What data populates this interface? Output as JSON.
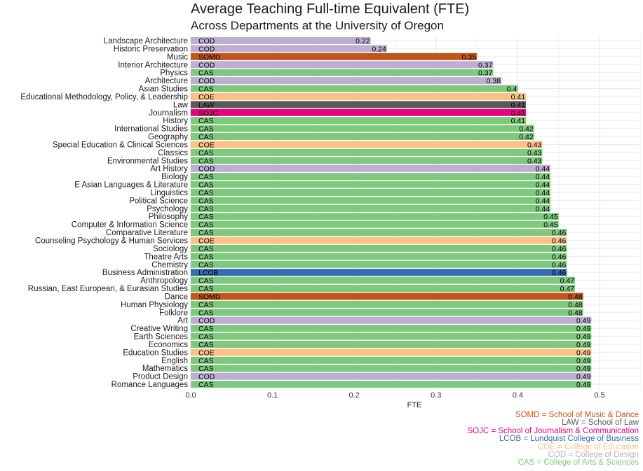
{
  "chart_data": {
    "type": "bar",
    "orientation": "horizontal",
    "title": "Average Teaching Full-time Equivalent (FTE)",
    "subtitle": "Across Departments at the University of Oregon",
    "xlabel": "FTE",
    "ylabel": "",
    "xlim": [
      0,
      0.55
    ],
    "xticks": [
      "0.0",
      "0.1",
      "0.2",
      "0.3",
      "0.4",
      "0.5"
    ],
    "xtick_values": [
      0,
      0.1,
      0.2,
      0.3,
      0.4,
      0.5
    ],
    "grid": true,
    "legend_position": "bottom-right",
    "colors": {
      "SOMD": "#c0561a",
      "LAW": "#5a5a5a",
      "SOJC": "#e7007d",
      "LCOB": "#386cb0",
      "COE": "#fdc086",
      "COD": "#beaed4",
      "CAS": "#7fc97f"
    },
    "bars": [
      {
        "department": "Landscape Architecture",
        "code": "COD",
        "value": 0.22,
        "label": "0.22"
      },
      {
        "department": "Historic Preservation",
        "code": "COD",
        "value": 0.24,
        "label": "0.24"
      },
      {
        "department": "Music",
        "code": "SOMD",
        "value": 0.35,
        "label": "0.35"
      },
      {
        "department": "Interior Architecture",
        "code": "COD",
        "value": 0.37,
        "label": "0.37"
      },
      {
        "department": "Physics",
        "code": "CAS",
        "value": 0.37,
        "label": "0.37"
      },
      {
        "department": "Architecture",
        "code": "COD",
        "value": 0.38,
        "label": "0.38"
      },
      {
        "department": "Asian Studies",
        "code": "CAS",
        "value": 0.4,
        "label": "0.4"
      },
      {
        "department": "Educational Methodology, Policy, & Leadership",
        "code": "COE",
        "value": 0.41,
        "label": "0.41"
      },
      {
        "department": "Law",
        "code": "LAW",
        "value": 0.41,
        "label": "0.41"
      },
      {
        "department": "Journalism",
        "code": "SOJC",
        "value": 0.41,
        "label": "0.41"
      },
      {
        "department": "History",
        "code": "CAS",
        "value": 0.41,
        "label": "0.41"
      },
      {
        "department": "International Studies",
        "code": "CAS",
        "value": 0.42,
        "label": "0.42"
      },
      {
        "department": "Geography",
        "code": "CAS",
        "value": 0.42,
        "label": "0.42"
      },
      {
        "department": "Special Education & Clinical Sciences",
        "code": "COE",
        "value": 0.43,
        "label": "0.43"
      },
      {
        "department": "Classics",
        "code": "CAS",
        "value": 0.43,
        "label": "0.43"
      },
      {
        "department": "Environmental Studies",
        "code": "CAS",
        "value": 0.43,
        "label": "0.43"
      },
      {
        "department": "Art History",
        "code": "COD",
        "value": 0.44,
        "label": "0.44"
      },
      {
        "department": "Biology",
        "code": "CAS",
        "value": 0.44,
        "label": "0.44"
      },
      {
        "department": "E Asian Languages & Literature",
        "code": "CAS",
        "value": 0.44,
        "label": "0.44"
      },
      {
        "department": "Linguistics",
        "code": "CAS",
        "value": 0.44,
        "label": "0.44"
      },
      {
        "department": "Political Science",
        "code": "CAS",
        "value": 0.44,
        "label": "0.44"
      },
      {
        "department": "Psychology",
        "code": "CAS",
        "value": 0.44,
        "label": "0.44"
      },
      {
        "department": "Philosophy",
        "code": "CAS",
        "value": 0.45,
        "label": "0.45"
      },
      {
        "department": "Computer & Information Science",
        "code": "CAS",
        "value": 0.45,
        "label": "0.45"
      },
      {
        "department": "Comparative Literature",
        "code": "CAS",
        "value": 0.46,
        "label": "0.46"
      },
      {
        "department": "Counseling Psychology & Human Services",
        "code": "COE",
        "value": 0.46,
        "label": "0.46"
      },
      {
        "department": "Sociology",
        "code": "CAS",
        "value": 0.46,
        "label": "0.46"
      },
      {
        "department": "Theatre Arts",
        "code": "CAS",
        "value": 0.46,
        "label": "0.46"
      },
      {
        "department": "Chemistry",
        "code": "CAS",
        "value": 0.46,
        "label": "0.46"
      },
      {
        "department": "Business Administration",
        "code": "LCOB",
        "value": 0.46,
        "label": "0.46"
      },
      {
        "department": "Anthropology",
        "code": "CAS",
        "value": 0.47,
        "label": "0.47"
      },
      {
        "department": "Russian, East European, & Eurasian Studies",
        "code": "CAS",
        "value": 0.47,
        "label": "0.47"
      },
      {
        "department": "Dance",
        "code": "SOMD",
        "value": 0.48,
        "label": "0.48"
      },
      {
        "department": "Human Physiology",
        "code": "CAS",
        "value": 0.48,
        "label": "0.48"
      },
      {
        "department": "Folklore",
        "code": "CAS",
        "value": 0.48,
        "label": "0.48"
      },
      {
        "department": "Art",
        "code": "COD",
        "value": 0.49,
        "label": "0.49"
      },
      {
        "department": "Creative Writing",
        "code": "CAS",
        "value": 0.49,
        "label": "0.49"
      },
      {
        "department": "Earth Sciences",
        "code": "CAS",
        "value": 0.49,
        "label": "0.49"
      },
      {
        "department": "Economics",
        "code": "CAS",
        "value": 0.49,
        "label": "0.49"
      },
      {
        "department": "Education Studies",
        "code": "COE",
        "value": 0.49,
        "label": "0.49"
      },
      {
        "department": "English",
        "code": "CAS",
        "value": 0.49,
        "label": "0.49"
      },
      {
        "department": "Mathematics",
        "code": "CAS",
        "value": 0.49,
        "label": "0.49"
      },
      {
        "department": "Product Design",
        "code": "COD",
        "value": 0.49,
        "label": "0.49"
      },
      {
        "department": "Romance Languages",
        "code": "CAS",
        "value": 0.49,
        "label": "0.49"
      }
    ],
    "legend": [
      {
        "code": "SOMD",
        "text": "SOMD = School of Music & Dance"
      },
      {
        "code": "LAW",
        "text": "LAW = School of Law"
      },
      {
        "code": "SOJC",
        "text": "SOJC = School of Journalism & Communication"
      },
      {
        "code": "LCOB",
        "text": "LCOB = Lundquist College of Business"
      },
      {
        "code": "COE",
        "text": "COE = College of Education"
      },
      {
        "code": "COD",
        "text": "COD = College of Design"
      },
      {
        "code": "CAS",
        "text": "CAS = College of Arts & Sciences"
      }
    ]
  }
}
